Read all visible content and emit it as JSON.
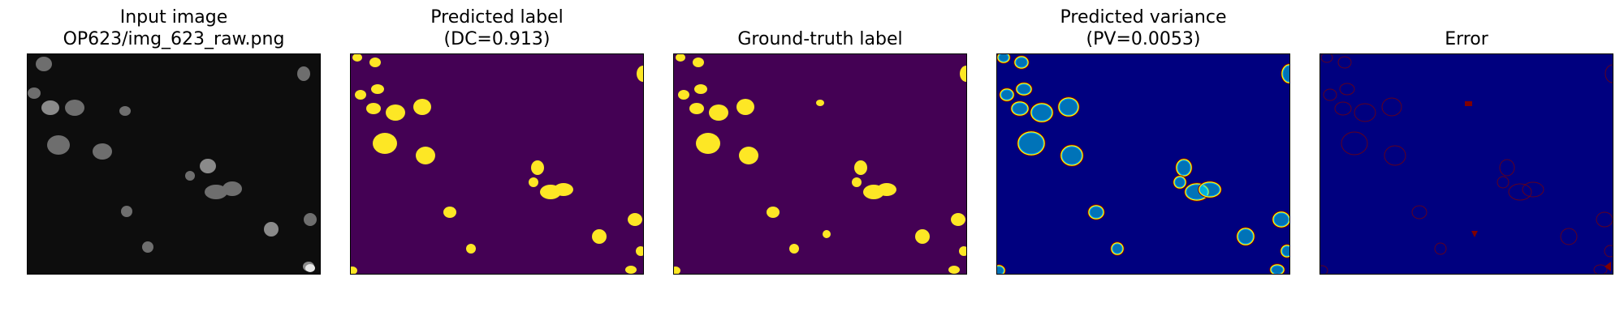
{
  "panels": [
    {
      "id": "input",
      "title_line1": "Input image",
      "title_line2": "OP623/img_623_raw.png",
      "colormap": "gray"
    },
    {
      "id": "predicted-label",
      "title_line1": "Predicted label",
      "title_line2": "(DC=0.913)",
      "colormap": "viridis"
    },
    {
      "id": "ground-truth",
      "title_line1": "",
      "title_line2": "Ground-truth label",
      "colormap": "viridis"
    },
    {
      "id": "predicted-variance",
      "title_line1": "Predicted variance",
      "title_line2": "(PV=0.0053)",
      "colormap": "jet"
    },
    {
      "id": "error",
      "title_line1": "",
      "title_line2": "Error",
      "colormap": "jet"
    }
  ],
  "colors": {
    "gray_background": "#0d0d0d",
    "nucleus_gray": "#6e6e6e",
    "viridis_background": "#440154",
    "viridis_foreground": "#fde725",
    "jet_background": "#00007f",
    "jet_mid": "#00ffff",
    "jet_high": "#ffff00",
    "jet_max": "#7f0000"
  }
}
